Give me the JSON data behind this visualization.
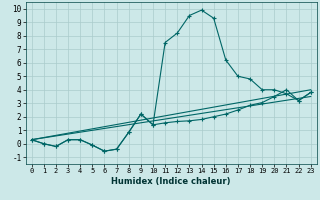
{
  "xlabel": "Humidex (Indice chaleur)",
  "bg_color": "#cce8e8",
  "grid_color": "#aacccc",
  "line_color": "#006666",
  "xlim": [
    -0.5,
    23.5
  ],
  "ylim": [
    -1.5,
    10.5
  ],
  "xticks": [
    0,
    1,
    2,
    3,
    4,
    5,
    6,
    7,
    8,
    9,
    10,
    11,
    12,
    13,
    14,
    15,
    16,
    17,
    18,
    19,
    20,
    21,
    22,
    23
  ],
  "yticks": [
    -1,
    0,
    1,
    2,
    3,
    4,
    5,
    6,
    7,
    8,
    9,
    10
  ],
  "series1_x": [
    0,
    1,
    2,
    3,
    4,
    5,
    6,
    7,
    8,
    9,
    10,
    11,
    12,
    13,
    14,
    15,
    16,
    17,
    18,
    19,
    20,
    21,
    22,
    23
  ],
  "series1_y": [
    0.3,
    0.0,
    -0.2,
    0.3,
    0.3,
    -0.1,
    -0.55,
    -0.4,
    0.85,
    2.2,
    1.4,
    7.5,
    8.2,
    9.5,
    9.9,
    9.3,
    6.2,
    5.0,
    4.8,
    4.0,
    4.0,
    3.7,
    3.2,
    3.8
  ],
  "series2_x": [
    0,
    1,
    2,
    3,
    4,
    5,
    6,
    7,
    8,
    9,
    10,
    11,
    12,
    13,
    14,
    15,
    16,
    17,
    18,
    19,
    20,
    21,
    22,
    23
  ],
  "series2_y": [
    0.3,
    0.0,
    -0.2,
    0.3,
    0.3,
    -0.1,
    -0.55,
    -0.4,
    0.85,
    2.2,
    1.4,
    1.55,
    1.65,
    1.7,
    1.8,
    2.0,
    2.2,
    2.5,
    2.85,
    3.05,
    3.5,
    4.0,
    3.2,
    3.8
  ],
  "series3_x": [
    0,
    23
  ],
  "series3_y": [
    0.3,
    3.5
  ],
  "series4_x": [
    0,
    23
  ],
  "series4_y": [
    0.3,
    4.0
  ]
}
